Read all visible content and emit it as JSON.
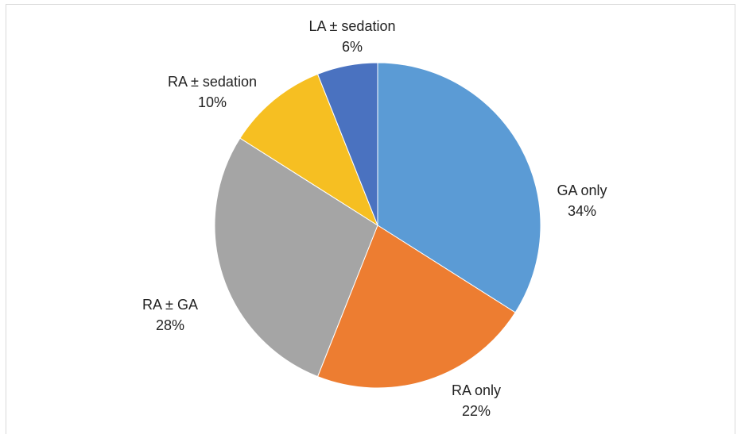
{
  "chart_data": {
    "type": "pie",
    "categories": [
      "GA only",
      "RA only",
      "RA ± GA",
      "RA ± sedation",
      "LA ± sedation"
    ],
    "values": [
      34,
      22,
      28,
      10,
      6
    ],
    "value_labels": [
      "34%",
      "22%",
      "28%",
      "10%",
      "6%"
    ],
    "colors": [
      "#5b9bd5",
      "#ed7d31",
      "#a5a5a5",
      "#f6bf22",
      "#4a72c0"
    ]
  }
}
